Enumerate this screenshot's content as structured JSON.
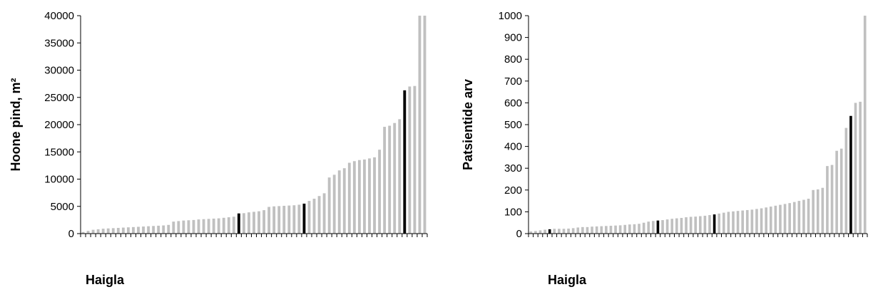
{
  "colors": {
    "normal_bar": "#c0c0c0",
    "highlight_bar": "#000000",
    "axis": "#000000"
  },
  "chart_data": [
    {
      "type": "bar",
      "title": "",
      "xlabel": "Haigla",
      "ylabel": "Hoone pind, m²",
      "ylim": [
        0,
        40000
      ],
      "yticks": [
        "0",
        "5000",
        "10000",
        "15000",
        "20000",
        "25000",
        "30000",
        "35000",
        "40000"
      ],
      "grid": false,
      "legend": "none",
      "values": [
        300,
        500,
        700,
        800,
        900,
        950,
        1000,
        1050,
        1100,
        1150,
        1200,
        1250,
        1300,
        1350,
        1400,
        1450,
        1500,
        1600,
        2200,
        2300,
        2400,
        2450,
        2500,
        2600,
        2650,
        2700,
        2750,
        2800,
        2900,
        3000,
        3100,
        3700,
        3750,
        3900,
        4000,
        4100,
        4300,
        4900,
        5000,
        5050,
        5100,
        5150,
        5200,
        5300,
        5500,
        6000,
        6400,
        6900,
        7400,
        10300,
        10800,
        11600,
        12000,
        13000,
        13300,
        13500,
        13600,
        13800,
        14000,
        15400,
        19600,
        19800,
        20300,
        21000,
        26300,
        27000,
        27100,
        40000,
        40000
      ],
      "highlight_indices": [
        31,
        44,
        64
      ]
    },
    {
      "type": "bar",
      "title": "",
      "xlabel": "Haigla",
      "ylabel": "Patsientide arv",
      "ylim": [
        0,
        1000
      ],
      "yticks": [
        "0",
        "100",
        "200",
        "300",
        "400",
        "500",
        "600",
        "700",
        "800",
        "900",
        "1000"
      ],
      "grid": false,
      "legend": "none",
      "values": [
        10,
        12,
        15,
        18,
        20,
        22,
        22,
        22,
        23,
        25,
        28,
        30,
        30,
        32,
        33,
        34,
        35,
        36,
        37,
        38,
        40,
        42,
        43,
        45,
        50,
        55,
        58,
        60,
        62,
        65,
        68,
        70,
        72,
        75,
        77,
        78,
        80,
        82,
        85,
        88,
        92,
        96,
        100,
        102,
        104,
        106,
        108,
        110,
        113,
        116,
        120,
        124,
        128,
        132,
        136,
        140,
        145,
        150,
        155,
        160,
        200,
        203,
        210,
        310,
        315,
        380,
        390,
        485,
        540,
        600,
        605,
        1000
      ],
      "highlight_indices": [
        4,
        27,
        39,
        68
      ]
    }
  ]
}
